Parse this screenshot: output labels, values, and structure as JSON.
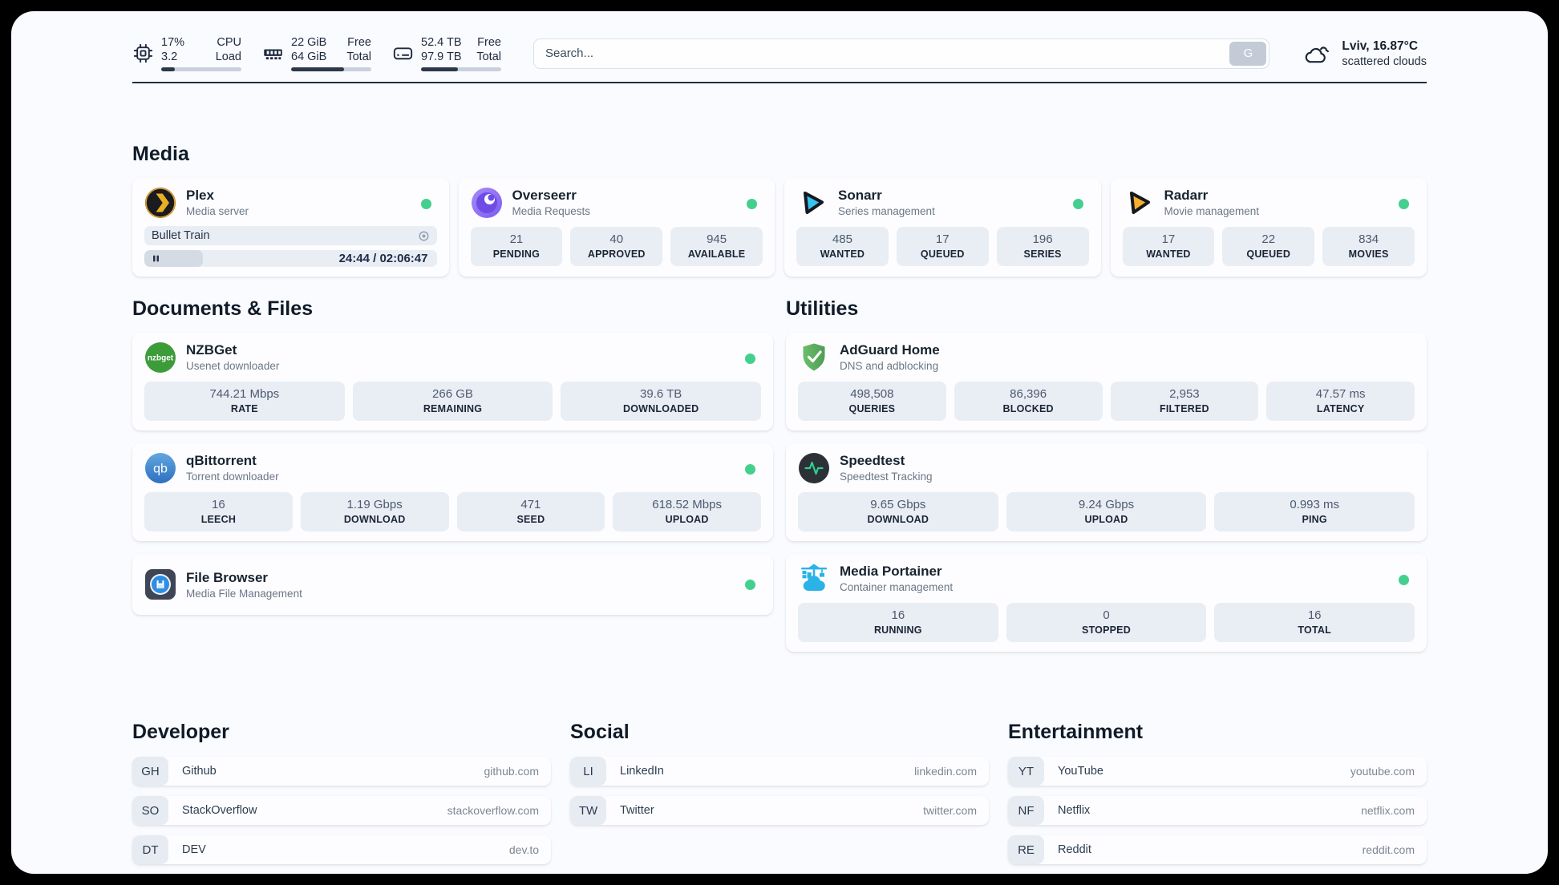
{
  "theme": {
    "status_green": "#43d08e"
  },
  "header": {
    "stats": [
      {
        "name": "cpu",
        "value_top": "17%",
        "value_bottom": "3.2",
        "label_top": "CPU",
        "label_bottom": "Load",
        "progress_pct": 17
      },
      {
        "name": "memory",
        "value_top": "22 GiB",
        "value_bottom": "64 GiB",
        "label_top": "Free",
        "label_bottom": "Total",
        "progress_pct": 66
      },
      {
        "name": "disk",
        "value_top": "52.4 TB",
        "value_bottom": "97.9 TB",
        "label_top": "Free",
        "label_bottom": "Total",
        "progress_pct": 46
      }
    ],
    "search": {
      "placeholder": "Search...",
      "button_label": "G"
    },
    "weather": {
      "title": "Lviv, 16.87°C",
      "subtitle": "scattered clouds"
    }
  },
  "sections": {
    "media": {
      "title": "Media",
      "plex": {
        "name": "Plex",
        "subtitle": "Media server",
        "now_playing": "Bullet Train",
        "time": "24:44 / 02:06:47",
        "progress_pct": 20
      },
      "overseerr": {
        "name": "Overseerr",
        "subtitle": "Media Requests",
        "stats": [
          {
            "value": "21",
            "label": "PENDING"
          },
          {
            "value": "40",
            "label": "APPROVED"
          },
          {
            "value": "945",
            "label": "AVAILABLE"
          }
        ]
      },
      "sonarr": {
        "name": "Sonarr",
        "subtitle": "Series management",
        "stats": [
          {
            "value": "485",
            "label": "WANTED"
          },
          {
            "value": "17",
            "label": "QUEUED"
          },
          {
            "value": "196",
            "label": "SERIES"
          }
        ]
      },
      "radarr": {
        "name": "Radarr",
        "subtitle": "Movie management",
        "stats": [
          {
            "value": "17",
            "label": "WANTED"
          },
          {
            "value": "22",
            "label": "QUEUED"
          },
          {
            "value": "834",
            "label": "MOVIES"
          }
        ]
      }
    },
    "documents": {
      "title": "Documents & Files",
      "nzbget": {
        "name": "NZBGet",
        "subtitle": "Usenet downloader",
        "stats": [
          {
            "value": "744.21 Mbps",
            "label": "RATE"
          },
          {
            "value": "266 GB",
            "label": "REMAINING"
          },
          {
            "value": "39.6 TB",
            "label": "DOWNLOADED"
          }
        ]
      },
      "qbittorrent": {
        "name": "qBittorrent",
        "subtitle": "Torrent downloader",
        "stats": [
          {
            "value": "16",
            "label": "LEECH"
          },
          {
            "value": "1.19 Gbps",
            "label": "DOWNLOAD"
          },
          {
            "value": "471",
            "label": "SEED"
          },
          {
            "value": "618.52 Mbps",
            "label": "UPLOAD"
          }
        ]
      },
      "filebrowser": {
        "name": "File Browser",
        "subtitle": "Media File Management"
      }
    },
    "utilities": {
      "title": "Utilities",
      "adguard": {
        "name": "AdGuard Home",
        "subtitle": "DNS and adblocking",
        "stats": [
          {
            "value": "498,508",
            "label": "QUERIES"
          },
          {
            "value": "86,396",
            "label": "BLOCKED"
          },
          {
            "value": "2,953",
            "label": "FILTERED"
          },
          {
            "value": "47.57 ms",
            "label": "LATENCY"
          }
        ]
      },
      "speedtest": {
        "name": "Speedtest",
        "subtitle": "Speedtest Tracking",
        "stats": [
          {
            "value": "9.65 Gbps",
            "label": "DOWNLOAD"
          },
          {
            "value": "9.24 Gbps",
            "label": "UPLOAD"
          },
          {
            "value": "0.993 ms",
            "label": "PING"
          }
        ]
      },
      "portainer": {
        "name": "Media Portainer",
        "subtitle": "Container management",
        "stats": [
          {
            "value": "16",
            "label": "RUNNING"
          },
          {
            "value": "0",
            "label": "STOPPED"
          },
          {
            "value": "16",
            "label": "TOTAL"
          }
        ]
      }
    },
    "bookmarks": {
      "developer": {
        "title": "Developer",
        "items": [
          {
            "abbr": "GH",
            "name": "Github",
            "domain": "github.com"
          },
          {
            "abbr": "SO",
            "name": "StackOverflow",
            "domain": "stackoverflow.com"
          },
          {
            "abbr": "DT",
            "name": "DEV",
            "domain": "dev.to"
          }
        ]
      },
      "social": {
        "title": "Social",
        "items": [
          {
            "abbr": "LI",
            "name": "LinkedIn",
            "domain": "linkedin.com"
          },
          {
            "abbr": "TW",
            "name": "Twitter",
            "domain": "twitter.com"
          }
        ]
      },
      "entertainment": {
        "title": "Entertainment",
        "items": [
          {
            "abbr": "YT",
            "name": "YouTube",
            "domain": "youtube.com"
          },
          {
            "abbr": "NF",
            "name": "Netflix",
            "domain": "netflix.com"
          },
          {
            "abbr": "RE",
            "name": "Reddit",
            "domain": "reddit.com"
          }
        ]
      }
    }
  }
}
